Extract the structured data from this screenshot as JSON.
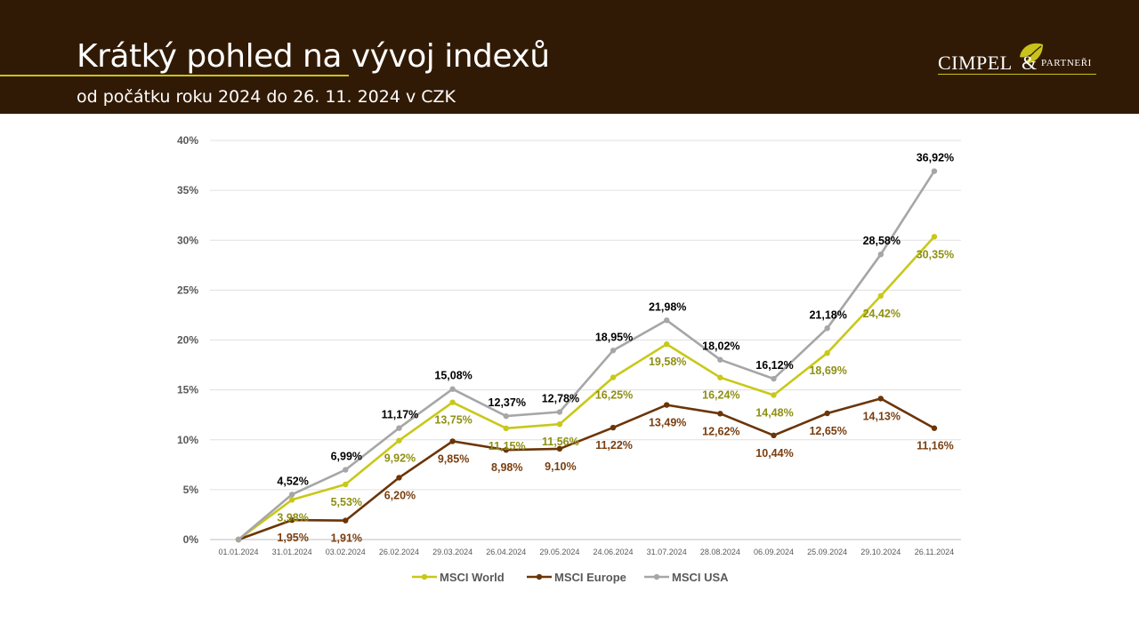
{
  "header": {
    "title": "Krátký pohled na vývoj indexů",
    "subtitle": "od počátku roku 2024 do 26. 11. 2024 v CZK"
  },
  "logo": {
    "word": "CIMPEL",
    "amp": "&",
    "partners": "PARTNEŘI",
    "leaf_icon": "leaf-icon"
  },
  "colors": {
    "header_bg": "#311a05",
    "accent": "#c8c21a",
    "msci_world": "#c8c81a",
    "msci_europe": "#6b3508",
    "msci_usa": "#a6a6a6"
  },
  "chart_data": {
    "type": "line",
    "categories": [
      "01.01.2024",
      "31.01.2024",
      "03.02.2024",
      "26.02.2024",
      "29.03.2024",
      "26.04.2024",
      "29.05.2024",
      "24.06.2024",
      "31.07.2024",
      "28.08.2024",
      "06.09.2024",
      "25.09.2024",
      "29.10.2024",
      "26.11.2024"
    ],
    "ylim": [
      0,
      40
    ],
    "yticks": [
      0,
      5,
      10,
      15,
      20,
      25,
      30,
      35,
      40
    ],
    "ytick_labels": [
      "0%",
      "5%",
      "10%",
      "15%",
      "20%",
      "25%",
      "30%",
      "35%",
      "40%"
    ],
    "grid": true,
    "legend": "bottom",
    "series": [
      {
        "name": "MSCI World",
        "color": "#c8c81a",
        "label_color": "#8f8f14",
        "values": [
          0,
          3.98,
          5.53,
          9.92,
          13.75,
          11.15,
          11.56,
          16.25,
          19.58,
          16.24,
          14.48,
          18.69,
          24.42,
          30.35
        ],
        "labels": [
          "",
          "3,98%",
          "5,53%",
          "9,92%",
          "13,75%",
          "11,15%",
          "11,56%",
          "16,25%",
          "19,58%",
          "16,24%",
          "14,48%",
          "18,69%",
          "24,42%",
          "30,35%"
        ]
      },
      {
        "name": "MSCI Europe",
        "color": "#6b3508",
        "label_color": "#7a3e10",
        "values": [
          0,
          1.95,
          1.91,
          6.2,
          9.85,
          8.98,
          9.1,
          11.22,
          13.49,
          12.62,
          10.44,
          12.65,
          14.13,
          11.16
        ],
        "labels": [
          "",
          "1,95%",
          "1,91%",
          "6,20%",
          "9,85%",
          "8,98%",
          "9,10%",
          "11,22%",
          "13,49%",
          "12,62%",
          "10,44%",
          "12,65%",
          "14,13%",
          "11,16%"
        ]
      },
      {
        "name": "MSCI USA",
        "color": "#a6a6a6",
        "label_color": "#000000",
        "values": [
          0,
          4.52,
          6.99,
          11.17,
          15.08,
          12.37,
          12.78,
          18.95,
          21.98,
          18.02,
          16.12,
          21.18,
          28.58,
          36.92
        ],
        "labels": [
          "",
          "4,52%",
          "6,99%",
          "11,17%",
          "15,08%",
          "12,37%",
          "12,78%",
          "18,95%",
          "21,98%",
          "18,02%",
          "16,12%",
          "21,18%",
          "28,58%",
          "36,92%"
        ]
      }
    ]
  }
}
